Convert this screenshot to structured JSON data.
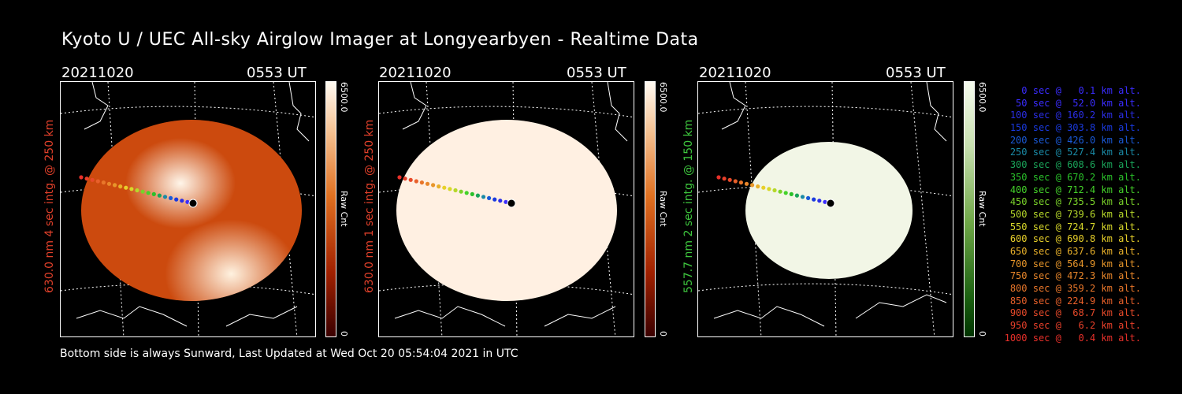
{
  "title": "Kyoto U / UEC All-sky Airglow Imager at Longyearbyen - Realtime Data",
  "footer": "Bottom side is always Sunward, Last Updated at Wed Oct 20 05:54:04 2021 in UTC",
  "panels": [
    {
      "date": "20211020",
      "time": "0553 UT",
      "ylabel": "630.0 nm 4 sec intg. @ 250 km",
      "label_color": "#e0402a",
      "cbar_max": "6500.0",
      "cbar_label": "Raw Cnt",
      "cbar_min": "0",
      "colormap": "orange"
    },
    {
      "date": "20211020",
      "time": "0553 UT",
      "ylabel": "630.0 nm 1 sec intg. @ 250 km",
      "label_color": "#e0402a",
      "cbar_max": "6500.0",
      "cbar_label": "Raw Cnt",
      "cbar_min": "0",
      "colormap": "orange"
    },
    {
      "date": "20211020",
      "time": "0553 UT",
      "ylabel": "557.7 nm 2 sec intg. @ 150 km",
      "label_color": "#3ec63e",
      "cbar_max": "6500.0",
      "cbar_label": "Raw Cnt",
      "cbar_min": "0",
      "colormap": "green"
    }
  ],
  "legend": [
    {
      "text": "0 sec @   0.1 km alt.",
      "color": "#3a2cff"
    },
    {
      "text": "50 sec @  52.0 km alt.",
      "color": "#3a2cff"
    },
    {
      "text": "100 sec @ 160.2 km alt.",
      "color": "#2a2ee6"
    },
    {
      "text": "150 sec @ 303.8 km alt.",
      "color": "#1a3adf"
    },
    {
      "text": "200 sec @ 426.0 km alt.",
      "color": "#1a5ad8"
    },
    {
      "text": "250 sec @ 527.4 km alt.",
      "color": "#1a8aa6"
    },
    {
      "text": "300 sec @ 608.6 km alt.",
      "color": "#1aa55a"
    },
    {
      "text": "350 sec @ 670.2 km alt.",
      "color": "#2ac02a"
    },
    {
      "text": "400 sec @ 712.4 km alt.",
      "color": "#44d22a"
    },
    {
      "text": "450 sec @ 735.5 km alt.",
      "color": "#7ad22a"
    },
    {
      "text": "500 sec @ 739.6 km alt.",
      "color": "#b6d82a"
    },
    {
      "text": "550 sec @ 724.7 km alt.",
      "color": "#d8d82a"
    },
    {
      "text": "600 sec @ 690.8 km alt.",
      "color": "#e8d02a"
    },
    {
      "text": "650 sec @ 637.6 km alt.",
      "color": "#e8b02a"
    },
    {
      "text": "700 sec @ 564.9 km alt.",
      "color": "#e8962a"
    },
    {
      "text": "750 sec @ 472.3 km alt.",
      "color": "#e8862a"
    },
    {
      "text": "800 sec @ 359.2 km alt.",
      "color": "#e8762a"
    },
    {
      "text": "850 sec @ 224.9 km alt.",
      "color": "#e8602a"
    },
    {
      "text": "900 sec @  68.7 km alt.",
      "color": "#e84a2a"
    },
    {
      "text": "950 sec @   6.2 km alt.",
      "color": "#e8402a"
    },
    {
      "text": "1000 sec @   0.4 km alt.",
      "color": "#e8302a"
    }
  ]
}
